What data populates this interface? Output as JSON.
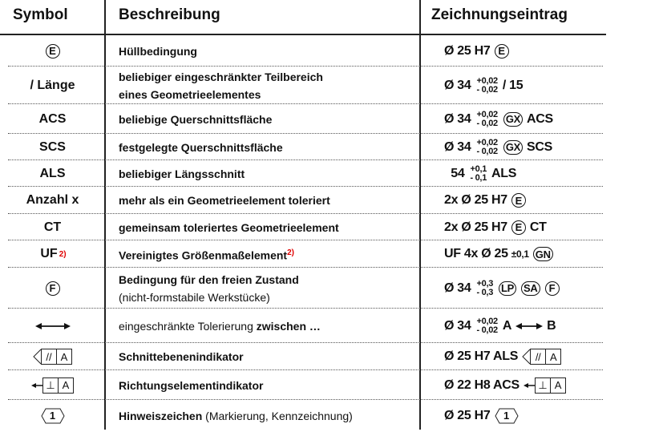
{
  "headers": {
    "symbol": "Symbol",
    "description": "Beschreibung",
    "entry": "Zeichnungseintrag"
  },
  "rows": [
    {
      "symbol": [
        {
          "t": "circle",
          "v": "E"
        }
      ],
      "desc": [
        [
          {
            "v": "Hüllbedingung",
            "b": true
          }
        ]
      ],
      "entry": [
        {
          "t": "text",
          "v": "Ø 25 H7"
        },
        {
          "t": "circle",
          "v": "E"
        }
      ]
    },
    {
      "symbol": [
        {
          "t": "text",
          "v": "/ Länge"
        }
      ],
      "desc": [
        [
          {
            "v": "beliebiger eingeschränkter Teilbereich",
            "b": true
          }
        ],
        [
          {
            "v": "eines Geometrieelementes",
            "b": true
          }
        ]
      ],
      "entry": [
        {
          "t": "text",
          "v": "Ø 34"
        },
        {
          "t": "tol",
          "up": "+0,02",
          "lo": "- 0,02"
        },
        {
          "t": "text",
          "v": "/ 15"
        }
      ]
    },
    {
      "symbol": [
        {
          "t": "text",
          "v": "ACS"
        }
      ],
      "desc": [
        [
          {
            "v": "beliebige Querschnittsfläche",
            "b": true
          }
        ]
      ],
      "entry": [
        {
          "t": "text",
          "v": "Ø 34"
        },
        {
          "t": "tol",
          "up": "+0,02",
          "lo": "- 0,02"
        },
        {
          "t": "circle",
          "v": "GX"
        },
        {
          "t": "text",
          "v": "ACS"
        }
      ]
    },
    {
      "symbol": [
        {
          "t": "text",
          "v": "SCS"
        }
      ],
      "desc": [
        [
          {
            "v": "festgelegte Querschnittsfläche",
            "b": true
          }
        ]
      ],
      "entry": [
        {
          "t": "text",
          "v": "Ø 34"
        },
        {
          "t": "tol",
          "up": "+0,02",
          "lo": "- 0,02"
        },
        {
          "t": "circle",
          "v": "GX"
        },
        {
          "t": "text",
          "v": "SCS"
        }
      ]
    },
    {
      "symbol": [
        {
          "t": "text",
          "v": "ALS"
        }
      ],
      "desc": [
        [
          {
            "v": "beliebiger Längsschnitt",
            "b": true
          }
        ]
      ],
      "entry": [
        {
          "t": "text",
          "v": "  54"
        },
        {
          "t": "tol",
          "up": "+0,1",
          "lo": "- 0,1"
        },
        {
          "t": "text",
          "v": "ALS"
        }
      ]
    },
    {
      "symbol": [
        {
          "t": "text",
          "v": "Anzahl x"
        }
      ],
      "desc": [
        [
          {
            "v": "mehr als ein Geometrieelement toleriert",
            "b": true
          }
        ]
      ],
      "entry": [
        {
          "t": "text",
          "v": "2x Ø 25 H7"
        },
        {
          "t": "circle",
          "v": "E"
        }
      ]
    },
    {
      "symbol": [
        {
          "t": "text",
          "v": "CT"
        }
      ],
      "desc": [
        [
          {
            "v": "gemeinsam toleriertes Geometrieelement",
            "b": true
          }
        ]
      ],
      "entry": [
        {
          "t": "text",
          "v": "2x Ø 25 H7"
        },
        {
          "t": "circle",
          "v": "E"
        },
        {
          "t": "text",
          "v": "CT"
        }
      ]
    },
    {
      "symbol": [
        {
          "t": "text",
          "v": "UF"
        },
        {
          "t": "sup",
          "v": "2)"
        }
      ],
      "desc": [
        [
          {
            "v": "Vereinigtes Größenmaßelement",
            "b": true
          },
          {
            "v": "2)",
            "sup": true
          }
        ]
      ],
      "entry": [
        {
          "t": "text",
          "v": "UF 4x Ø 25"
        },
        {
          "t": "small",
          "v": "±0,1"
        },
        {
          "t": "circle",
          "v": "GN"
        }
      ]
    },
    {
      "symbol": [
        {
          "t": "circle",
          "v": "F"
        }
      ],
      "desc": [
        [
          {
            "v": "Bedingung für den freien Zustand",
            "b": true
          }
        ],
        [
          {
            "v": "(nicht-formstabile Werkstücke)",
            "b": false
          }
        ]
      ],
      "entry": [
        {
          "t": "text",
          "v": "Ø 34"
        },
        {
          "t": "tol",
          "up": "+0,3",
          "lo": "- 0,3"
        },
        {
          "t": "circle",
          "v": "LP"
        },
        {
          "t": "circle",
          "v": "SA"
        },
        {
          "t": "circle",
          "v": "F"
        }
      ]
    },
    {
      "symbol": [
        {
          "t": "arrow"
        }
      ],
      "desc": [
        [
          {
            "v": "eingeschränkte Tolerierung ",
            "b": false
          },
          {
            "v": "zwischen …",
            "b": true
          }
        ]
      ],
      "entry": [
        {
          "t": "text",
          "v": "Ø 34"
        },
        {
          "t": "tol",
          "up": "+0,02",
          "lo": "- 0,02"
        },
        {
          "t": "text",
          "v": "A"
        },
        {
          "t": "arrow"
        },
        {
          "t": "text",
          "v": "B"
        }
      ]
    },
    {
      "symbol": [
        {
          "t": "cutframe",
          "a": "//",
          "b": "A"
        }
      ],
      "desc": [
        [
          {
            "v": "Schnittebenenindikator",
            "b": true
          }
        ]
      ],
      "entry": [
        {
          "t": "text",
          "v": "Ø 25 H7 ALS"
        },
        {
          "t": "cutframe",
          "a": "//",
          "b": "A"
        }
      ]
    },
    {
      "symbol": [
        {
          "t": "dirframe",
          "a": "⊥",
          "b": "A"
        }
      ],
      "desc": [
        [
          {
            "v": "Richtungselementindikator",
            "b": true
          }
        ]
      ],
      "entry": [
        {
          "t": "text",
          "v": "Ø 22 H8 ACS"
        },
        {
          "t": "dirframe",
          "a": "⊥",
          "b": "A"
        }
      ]
    },
    {
      "symbol": [
        {
          "t": "hex",
          "v": "1"
        }
      ],
      "desc": [
        [
          {
            "v": "Hinweiszeichen",
            "b": true
          },
          {
            "v": " (Markierung, Kennzeichnung)",
            "b": false
          }
        ]
      ],
      "entry": [
        {
          "t": "text",
          "v": "Ø 25 H7"
        },
        {
          "t": "hex",
          "v": "1"
        }
      ]
    }
  ]
}
